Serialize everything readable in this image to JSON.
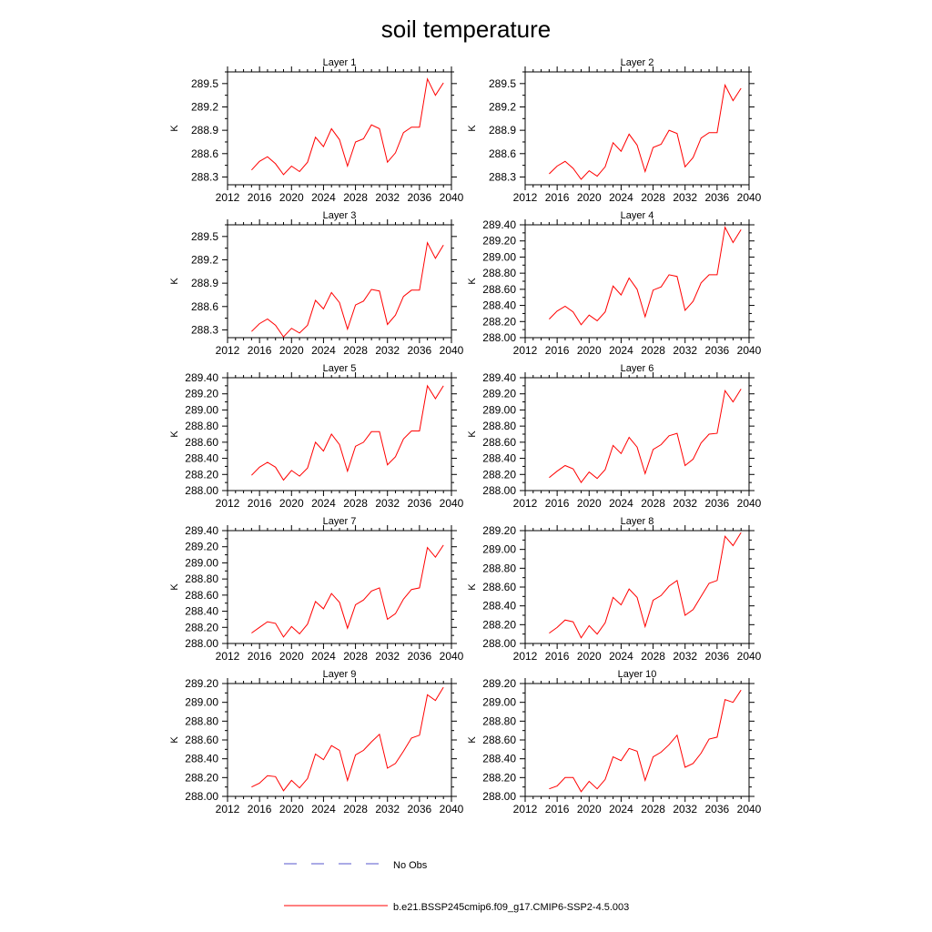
{
  "title": "soil temperature",
  "chart_data": [
    {
      "type": "line",
      "title": "Layer 1",
      "ylabel": "K",
      "xlim": [
        2012,
        2040
      ],
      "xticks": [
        2012,
        2016,
        2020,
        2024,
        2028,
        2032,
        2036,
        2040
      ],
      "ylim": [
        288.2,
        289.65
      ],
      "yticks": [
        "288.3",
        "288.6",
        "288.9",
        "289.2",
        "289.5"
      ],
      "x": [
        2015,
        2016,
        2017,
        2018,
        2019,
        2020,
        2021,
        2022,
        2023,
        2024,
        2025,
        2026,
        2027,
        2028,
        2029,
        2030,
        2031,
        2032,
        2033,
        2034,
        2035,
        2036,
        2037,
        2038,
        2039
      ],
      "series": [
        {
          "values": [
            288.39,
            288.5,
            288.56,
            288.47,
            288.33,
            288.44,
            288.37,
            288.49,
            288.81,
            288.69,
            288.92,
            288.78,
            288.44,
            288.75,
            288.79,
            288.97,
            288.92,
            288.49,
            288.61,
            288.87,
            288.94,
            288.94,
            289.56,
            289.35,
            289.51
          ],
          "color": "#ff0000"
        }
      ]
    },
    {
      "type": "line",
      "title": "Layer 2",
      "ylabel": "K",
      "xlim": [
        2012,
        2040
      ],
      "xticks": [
        2012,
        2016,
        2020,
        2024,
        2028,
        2032,
        2036,
        2040
      ],
      "ylim": [
        288.2,
        289.65
      ],
      "yticks": [
        "288.3",
        "288.6",
        "288.9",
        "289.2",
        "289.5"
      ],
      "x": [
        2015,
        2016,
        2017,
        2018,
        2019,
        2020,
        2021,
        2022,
        2023,
        2024,
        2025,
        2026,
        2027,
        2028,
        2029,
        2030,
        2031,
        2032,
        2033,
        2034,
        2035,
        2036,
        2037,
        2038,
        2039
      ],
      "series": [
        {
          "values": [
            288.34,
            288.44,
            288.5,
            288.41,
            288.27,
            288.38,
            288.31,
            288.43,
            288.74,
            288.63,
            288.85,
            288.71,
            288.37,
            288.68,
            288.72,
            288.9,
            288.86,
            288.43,
            288.55,
            288.8,
            288.87,
            288.87,
            289.48,
            289.28,
            289.44
          ],
          "color": "#ff0000"
        }
      ]
    },
    {
      "type": "line",
      "title": "Layer 3",
      "ylabel": "K",
      "xlim": [
        2012,
        2040
      ],
      "xticks": [
        2012,
        2016,
        2020,
        2024,
        2028,
        2032,
        2036,
        2040
      ],
      "ylim": [
        288.2,
        289.65
      ],
      "yticks": [
        "288.3",
        "288.6",
        "288.9",
        "289.2",
        "289.5"
      ],
      "x": [
        2015,
        2016,
        2017,
        2018,
        2019,
        2020,
        2021,
        2022,
        2023,
        2024,
        2025,
        2026,
        2027,
        2028,
        2029,
        2030,
        2031,
        2032,
        2033,
        2034,
        2035,
        2036,
        2037,
        2038,
        2039
      ],
      "series": [
        {
          "values": [
            288.28,
            288.38,
            288.44,
            288.36,
            288.21,
            288.32,
            288.26,
            288.36,
            288.68,
            288.57,
            288.78,
            288.65,
            288.31,
            288.62,
            288.67,
            288.82,
            288.8,
            288.37,
            288.49,
            288.73,
            288.81,
            288.81,
            289.42,
            289.22,
            289.39
          ],
          "color": "#ff0000"
        }
      ]
    },
    {
      "type": "line",
      "title": "Layer 4",
      "ylabel": "K",
      "xlim": [
        2012,
        2040
      ],
      "xticks": [
        2012,
        2016,
        2020,
        2024,
        2028,
        2032,
        2036,
        2040
      ],
      "ylim": [
        288.0,
        289.4
      ],
      "yticks": [
        "288.00",
        "288.20",
        "288.40",
        "288.60",
        "288.80",
        "289.00",
        "289.20",
        "289.40"
      ],
      "x": [
        2015,
        2016,
        2017,
        2018,
        2019,
        2020,
        2021,
        2022,
        2023,
        2024,
        2025,
        2026,
        2027,
        2028,
        2029,
        2030,
        2031,
        2032,
        2033,
        2034,
        2035,
        2036,
        2037,
        2038,
        2039
      ],
      "series": [
        {
          "values": [
            288.23,
            288.33,
            288.39,
            288.32,
            288.16,
            288.28,
            288.21,
            288.32,
            288.64,
            288.53,
            288.74,
            288.6,
            288.26,
            288.59,
            288.63,
            288.78,
            288.76,
            288.34,
            288.45,
            288.68,
            288.78,
            288.78,
            289.37,
            289.18,
            289.34
          ],
          "color": "#ff0000"
        }
      ]
    },
    {
      "type": "line",
      "title": "Layer 5",
      "ylabel": "K",
      "xlim": [
        2012,
        2040
      ],
      "xticks": [
        2012,
        2016,
        2020,
        2024,
        2028,
        2032,
        2036,
        2040
      ],
      "ylim": [
        288.0,
        289.4
      ],
      "yticks": [
        "288.00",
        "288.20",
        "288.40",
        "288.60",
        "288.80",
        "289.00",
        "289.20",
        "289.40"
      ],
      "x": [
        2015,
        2016,
        2017,
        2018,
        2019,
        2020,
        2021,
        2022,
        2023,
        2024,
        2025,
        2026,
        2027,
        2028,
        2029,
        2030,
        2031,
        2032,
        2033,
        2034,
        2035,
        2036,
        2037,
        2038,
        2039
      ],
      "series": [
        {
          "values": [
            288.19,
            288.29,
            288.35,
            288.29,
            288.13,
            288.25,
            288.18,
            288.28,
            288.6,
            288.49,
            288.7,
            288.57,
            288.24,
            288.55,
            288.6,
            288.73,
            288.73,
            288.32,
            288.42,
            288.64,
            288.74,
            288.74,
            289.3,
            289.14,
            289.3
          ],
          "color": "#ff0000"
        }
      ]
    },
    {
      "type": "line",
      "title": "Layer 6",
      "ylabel": "K",
      "xlim": [
        2012,
        2040
      ],
      "xticks": [
        2012,
        2016,
        2020,
        2024,
        2028,
        2032,
        2036,
        2040
      ],
      "ylim": [
        288.0,
        289.4
      ],
      "yticks": [
        "288.00",
        "288.20",
        "288.40",
        "288.60",
        "288.80",
        "289.00",
        "289.20",
        "289.40"
      ],
      "x": [
        2015,
        2016,
        2017,
        2018,
        2019,
        2020,
        2021,
        2022,
        2023,
        2024,
        2025,
        2026,
        2027,
        2028,
        2029,
        2030,
        2031,
        2032,
        2033,
        2034,
        2035,
        2036,
        2037,
        2038,
        2039
      ],
      "series": [
        {
          "values": [
            288.16,
            288.24,
            288.31,
            288.27,
            288.1,
            288.23,
            288.15,
            288.26,
            288.56,
            288.46,
            288.66,
            288.54,
            288.21,
            288.51,
            288.57,
            288.68,
            288.71,
            288.31,
            288.39,
            288.59,
            288.7,
            288.71,
            289.24,
            289.1,
            289.26
          ],
          "color": "#ff0000"
        }
      ]
    },
    {
      "type": "line",
      "title": "Layer 7",
      "ylabel": "K",
      "xlim": [
        2012,
        2040
      ],
      "xticks": [
        2012,
        2016,
        2020,
        2024,
        2028,
        2032,
        2036,
        2040
      ],
      "ylim": [
        288.0,
        289.4
      ],
      "yticks": [
        "288.00",
        "288.20",
        "288.40",
        "288.60",
        "288.80",
        "289.00",
        "289.20",
        "289.40"
      ],
      "x": [
        2015,
        2016,
        2017,
        2018,
        2019,
        2020,
        2021,
        2022,
        2023,
        2024,
        2025,
        2026,
        2027,
        2028,
        2029,
        2030,
        2031,
        2032,
        2033,
        2034,
        2035,
        2036,
        2037,
        2038,
        2039
      ],
      "series": [
        {
          "values": [
            288.13,
            288.2,
            288.27,
            288.25,
            288.08,
            288.21,
            288.12,
            288.24,
            288.52,
            288.43,
            288.62,
            288.51,
            288.19,
            288.48,
            288.54,
            288.65,
            288.69,
            288.3,
            288.37,
            288.55,
            288.67,
            288.69,
            289.19,
            289.07,
            289.22
          ],
          "color": "#ff0000"
        }
      ]
    },
    {
      "type": "line",
      "title": "Layer 8",
      "ylabel": "K",
      "xlim": [
        2012,
        2040
      ],
      "xticks": [
        2012,
        2016,
        2020,
        2024,
        2028,
        2032,
        2036,
        2040
      ],
      "ylim": [
        288.0,
        289.2
      ],
      "yticks": [
        "288.00",
        "288.20",
        "288.40",
        "288.60",
        "288.80",
        "289.00",
        "289.20"
      ],
      "x": [
        2015,
        2016,
        2017,
        2018,
        2019,
        2020,
        2021,
        2022,
        2023,
        2024,
        2025,
        2026,
        2027,
        2028,
        2029,
        2030,
        2031,
        2032,
        2033,
        2034,
        2035,
        2036,
        2037,
        2038,
        2039
      ],
      "series": [
        {
          "values": [
            288.11,
            288.17,
            288.25,
            288.23,
            288.06,
            288.19,
            288.1,
            288.22,
            288.49,
            288.41,
            288.58,
            288.49,
            288.18,
            288.46,
            288.51,
            288.61,
            288.67,
            288.3,
            288.36,
            288.5,
            288.64,
            288.67,
            289.14,
            289.04,
            289.18
          ],
          "color": "#ff0000"
        }
      ]
    },
    {
      "type": "line",
      "title": "Layer 9",
      "ylabel": "K",
      "xlim": [
        2012,
        2040
      ],
      "xticks": [
        2012,
        2016,
        2020,
        2024,
        2028,
        2032,
        2036,
        2040
      ],
      "ylim": [
        288.0,
        289.2
      ],
      "yticks": [
        "288.00",
        "288.20",
        "288.40",
        "288.60",
        "288.80",
        "289.00",
        "289.20"
      ],
      "x": [
        2015,
        2016,
        2017,
        2018,
        2019,
        2020,
        2021,
        2022,
        2023,
        2024,
        2025,
        2026,
        2027,
        2028,
        2029,
        2030,
        2031,
        2032,
        2033,
        2034,
        2035,
        2036,
        2037,
        2038,
        2039
      ],
      "series": [
        {
          "values": [
            288.1,
            288.14,
            288.22,
            288.21,
            288.06,
            288.17,
            288.09,
            288.19,
            288.45,
            288.39,
            288.54,
            288.49,
            288.17,
            288.44,
            288.49,
            288.58,
            288.66,
            288.3,
            288.35,
            288.48,
            288.62,
            288.65,
            289.08,
            289.02,
            289.16
          ],
          "color": "#ff0000"
        }
      ]
    },
    {
      "type": "line",
      "title": "Layer 10",
      "ylabel": "K",
      "xlim": [
        2012,
        2040
      ],
      "xticks": [
        2012,
        2016,
        2020,
        2024,
        2028,
        2032,
        2036,
        2040
      ],
      "ylim": [
        288.0,
        289.2
      ],
      "yticks": [
        "288.00",
        "288.20",
        "288.40",
        "288.60",
        "288.80",
        "289.00",
        "289.20"
      ],
      "x": [
        2015,
        2016,
        2017,
        2018,
        2019,
        2020,
        2021,
        2022,
        2023,
        2024,
        2025,
        2026,
        2027,
        2028,
        2029,
        2030,
        2031,
        2032,
        2033,
        2034,
        2035,
        2036,
        2037,
        2038,
        2039
      ],
      "series": [
        {
          "values": [
            288.08,
            288.11,
            288.2,
            288.2,
            288.05,
            288.16,
            288.08,
            288.18,
            288.42,
            288.38,
            288.51,
            288.48,
            288.17,
            288.42,
            288.47,
            288.55,
            288.65,
            288.31,
            288.35,
            288.46,
            288.61,
            288.63,
            289.03,
            289.0,
            289.13
          ],
          "color": "#ff0000"
        }
      ]
    }
  ],
  "legend": [
    {
      "label": "No Obs",
      "color": "#5555cc",
      "style": "dashed"
    },
    {
      "label": "b.e21.BSSP245cmip6.f09_g17.CMIP6-SSP2-4.5.003",
      "color": "#ff0000",
      "style": "solid"
    }
  ]
}
